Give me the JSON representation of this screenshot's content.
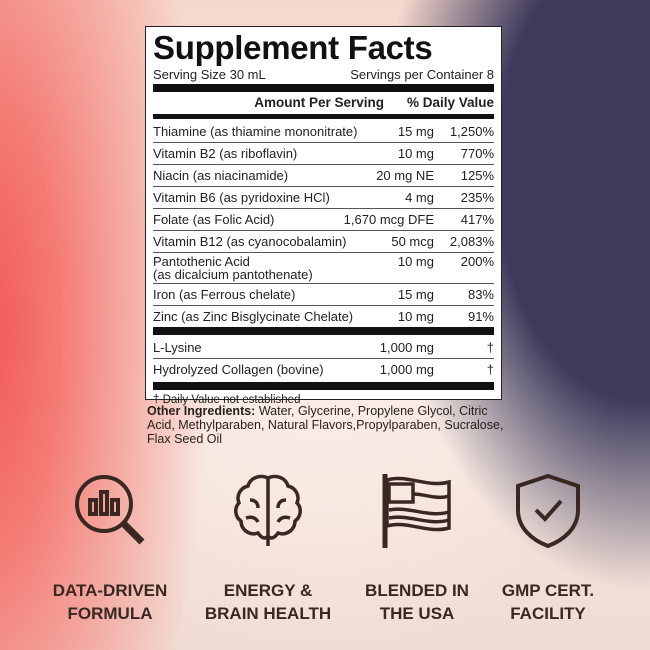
{
  "facts": {
    "title": "Supplement Facts",
    "serving_size": "Serving Size 30 mL",
    "servings_per_container": "Servings per Container 8",
    "header_amount": "Amount Per Serving",
    "header_dv": "% Daily Value",
    "rows": [
      {
        "name": "Thiamine (as thiamine mononitrate)",
        "amount": "15 mg",
        "dv": "1,250%"
      },
      {
        "name": "Vitamin B2 (as riboflavin)",
        "amount": "10 mg",
        "dv": "770%"
      },
      {
        "name": "Niacin (as niacinamide)",
        "amount": "20 mg NE",
        "dv": "125%"
      },
      {
        "name": "Vitamin B6 (as pyridoxine HCl)",
        "amount": "4 mg",
        "dv": "235%"
      },
      {
        "name": "Folate (as Folic Acid)",
        "amount": "1,670 mcg DFE",
        "dv": "417%"
      },
      {
        "name": "Vitamin B12 (as cyanocobalamin)",
        "amount": "50 mcg",
        "dv": "2,083%"
      },
      {
        "name": "Pantothenic Acid",
        "name2": "(as dicalcium pantothenate)",
        "amount": "10 mg",
        "dv": "200%"
      },
      {
        "name": "Iron (as Ferrous chelate)",
        "amount": "15 mg",
        "dv": "83%"
      },
      {
        "name": "Zinc (as Zinc Bisglycinate Chelate)",
        "amount": "10 mg",
        "dv": "91%"
      }
    ],
    "other_rows": [
      {
        "name": "L-Lysine",
        "amount": "1,000 mg",
        "dv": "†"
      },
      {
        "name": "Hydrolyzed Collagen (bovine)",
        "amount": "1,000 mg",
        "dv": "†"
      }
    ],
    "footnote": "† Daily Value not established"
  },
  "other_ingredients": {
    "label": "Other Ingredients:",
    "text": " Water, Glycerine, Propylene Glycol, Citric Acid, Methylparaben, Natural Flavors,Propylparaben, Sucralose, Flax Seed Oil"
  },
  "features": [
    {
      "icon": "chart-magnifier-icon",
      "label": "DATA-DRIVEN\nFORMULA"
    },
    {
      "icon": "brain-icon",
      "label": "ENERGY &\nBRAIN HEALTH"
    },
    {
      "icon": "usa-flag-icon",
      "label": "BLENDED IN\nTHE USA"
    },
    {
      "icon": "shield-check-icon",
      "label": "GMP CERT.\nFACILITY"
    }
  ],
  "colors": {
    "icon": "#3a2722",
    "purple": "#3d3a5c",
    "coral": "#f2555a"
  }
}
